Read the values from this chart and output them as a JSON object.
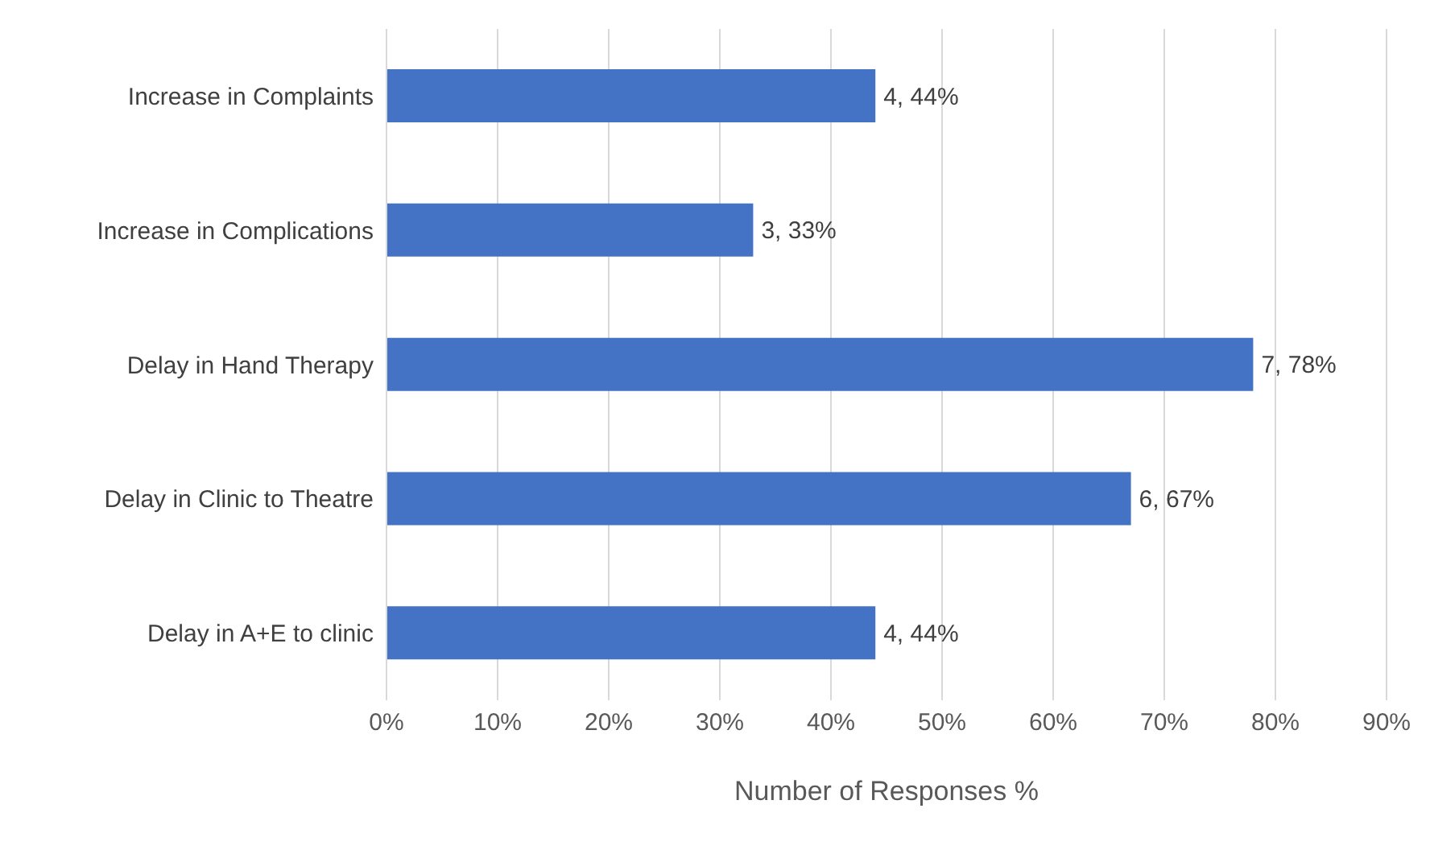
{
  "chart_data": {
    "type": "bar",
    "orientation": "horizontal",
    "categories": [
      "Increase in Complaints",
      "Increase in Complications",
      "Delay in Hand Therapy",
      "Delay in Clinic to Theatre",
      "Delay in A+E to clinic"
    ],
    "values": [
      44,
      33,
      78,
      67,
      44
    ],
    "value_labels": [
      "4, 44%",
      "3, 33%",
      "7, 78%",
      "6, 67%",
      "4, 44%"
    ],
    "color": "#4472c4",
    "xlabel": "Number of Responses %",
    "xlim": [
      0,
      90
    ],
    "xticks": [
      {
        "value": 0,
        "label": "0%"
      },
      {
        "value": 10,
        "label": "10%"
      },
      {
        "value": 20,
        "label": "20%"
      },
      {
        "value": 30,
        "label": "30%"
      },
      {
        "value": 40,
        "label": "40%"
      },
      {
        "value": 50,
        "label": "50%"
      },
      {
        "value": 60,
        "label": "60%"
      },
      {
        "value": 70,
        "label": "70%"
      },
      {
        "value": 80,
        "label": "80%"
      },
      {
        "value": 90,
        "label": "90%"
      }
    ],
    "grid": "x"
  }
}
